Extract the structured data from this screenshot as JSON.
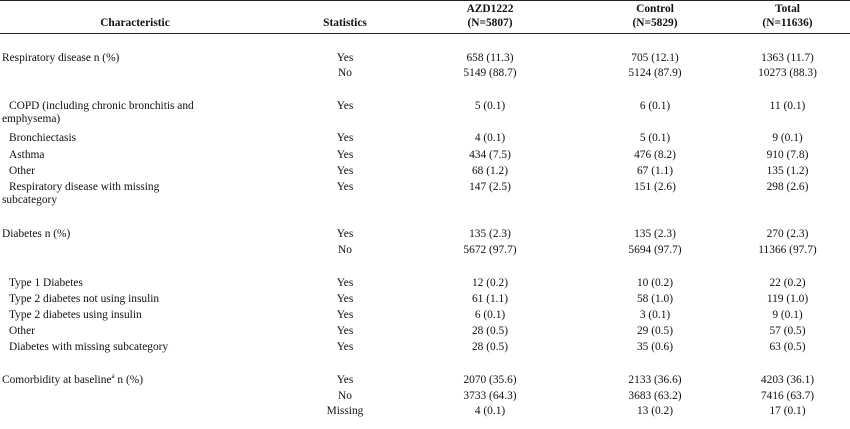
{
  "header": {
    "characteristic": "Characteristic",
    "statistics": "Statistics",
    "azd": {
      "name": "AZD1222",
      "n": "(N=5807)"
    },
    "control": {
      "name": "Control",
      "n": "(N=5829)"
    },
    "total": {
      "name": "Total",
      "n": "(N=11636)"
    }
  },
  "rows": [
    {
      "label": "Respiratory disease n (%)",
      "stat": "Yes",
      "azd": "658 (11.3)",
      "control": "705 (12.1)",
      "total": "1363 (11.7)"
    },
    {
      "label": "",
      "stat": "No",
      "azd": "5149 (88.7)",
      "control": "5124 (87.9)",
      "total": "10273 (88.3)"
    },
    {
      "label": "COPD (including chronic bronchitis and",
      "label2": "emphysema)",
      "stat": "Yes",
      "azd": "5 (0.1)",
      "control": "6 (0.1)",
      "total": "11 (0.1)"
    },
    {
      "label": "Bronchiectasis",
      "stat": "Yes",
      "azd": "4 (0.1)",
      "control": "5 (0.1)",
      "total": "9 (0.1)"
    },
    {
      "label": "Asthma",
      "stat": "Yes",
      "azd": "434 (7.5)",
      "control": "476 (8.2)",
      "total": "910 (7.8)"
    },
    {
      "label": "Other",
      "stat": "Yes",
      "azd": "68 (1.2)",
      "control": "67 (1.1)",
      "total": "135 (1.2)"
    },
    {
      "label": "Respiratory disease with missing",
      "label2": "subcategory",
      "stat": "Yes",
      "azd": "147 (2.5)",
      "control": "151 (2.6)",
      "total": "298 (2.6)"
    },
    {
      "label": "Diabetes n (%)",
      "stat": "Yes",
      "azd": "135 (2.3)",
      "control": "135 (2.3)",
      "total": "270 (2.3)"
    },
    {
      "label": "",
      "stat": "No",
      "azd": "5672 (97.7)",
      "control": "5694 (97.7)",
      "total": "11366 (97.7)"
    },
    {
      "label": "Type 1 Diabetes",
      "stat": "Yes",
      "azd": "12 (0.2)",
      "control": "10 (0.2)",
      "total": "22 (0.2)"
    },
    {
      "label": "Type 2 diabetes not using insulin",
      "stat": "Yes",
      "azd": "61 (1.1)",
      "control": "58 (1.0)",
      "total": "119 (1.0)"
    },
    {
      "label": "Type 2 diabetes using insulin",
      "stat": "Yes",
      "azd": "6 (0.1)",
      "control": "3 (0.1)",
      "total": "9 (0.1)"
    },
    {
      "label": "Other",
      "stat": "Yes",
      "azd": "28 (0.5)",
      "control": "29 (0.5)",
      "total": "57 (0.5)"
    },
    {
      "label": "Diabetes with missing subcategory",
      "stat": "Yes",
      "azd": "28 (0.5)",
      "control": "35 (0.6)",
      "total": "63 (0.5)"
    },
    {
      "label": "Comorbidity at baseline",
      "label_sup": "a",
      "label_tail": " n (%)",
      "stat": "Yes",
      "azd": "2070 (35.6)",
      "control": "2133 (36.6)",
      "total": "4203 (36.1)"
    },
    {
      "label": "",
      "stat": "No",
      "azd": "3733 (64.3)",
      "control": "3683 (63.2)",
      "total": "7416 (63.7)"
    },
    {
      "label": "",
      "stat": "Missing",
      "azd": "4 (0.1)",
      "control": "13 (0.2)",
      "total": "17 (0.1)"
    }
  ]
}
